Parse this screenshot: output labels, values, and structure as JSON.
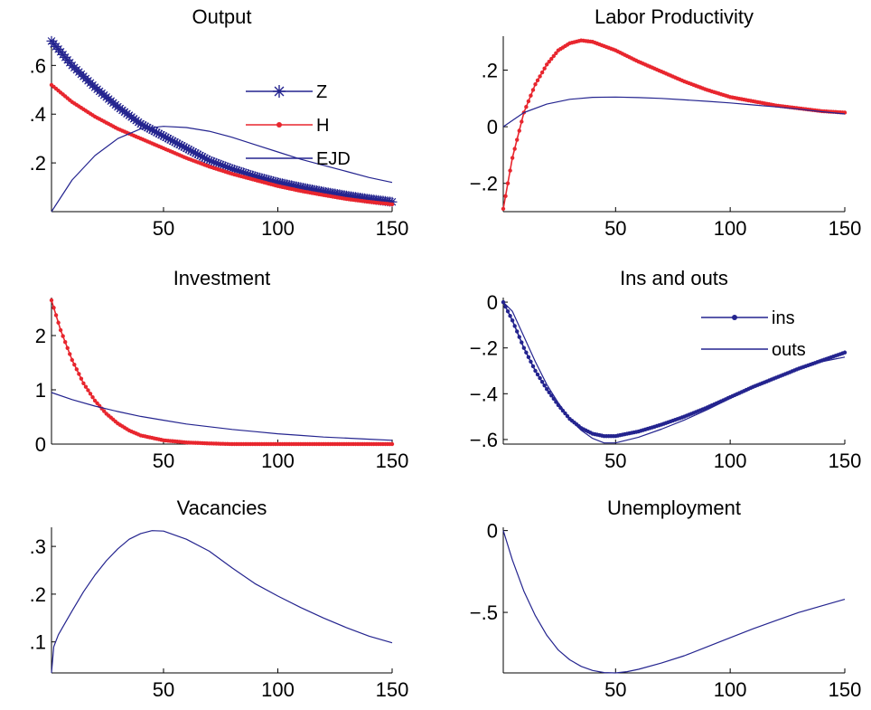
{
  "figure": {
    "layout": "3x2 grid of subplots"
  },
  "colors": {
    "blue": "#24248f",
    "red": "#e8262e"
  },
  "chart_data": [
    {
      "type": "line",
      "title": "Output",
      "xlim": [
        1,
        150
      ],
      "ylim": [
        0,
        0.72
      ],
      "xticks": [
        50,
        100,
        150
      ],
      "yticks": [
        0.2,
        0.4,
        0.6
      ],
      "grid": false,
      "legend": {
        "placement": "top-right",
        "entries": [
          "Z",
          "H",
          "EJD"
        ]
      },
      "series": [
        {
          "name": "Z",
          "marker": "asterisk",
          "color": "#24248f",
          "x": [
            1,
            10,
            20,
            30,
            40,
            50,
            60,
            70,
            80,
            90,
            100,
            110,
            120,
            130,
            140,
            150
          ],
          "y": [
            0.7,
            0.6,
            0.51,
            0.43,
            0.36,
            0.31,
            0.26,
            0.21,
            0.175,
            0.145,
            0.12,
            0.1,
            0.082,
            0.066,
            0.052,
            0.04
          ]
        },
        {
          "name": "H",
          "marker": "dot",
          "color": "#e8262e",
          "x": [
            1,
            10,
            20,
            30,
            40,
            50,
            60,
            70,
            80,
            90,
            100,
            110,
            120,
            130,
            140,
            150
          ],
          "y": [
            0.52,
            0.45,
            0.39,
            0.34,
            0.3,
            0.26,
            0.22,
            0.185,
            0.155,
            0.13,
            0.105,
            0.085,
            0.068,
            0.052,
            0.04,
            0.03
          ]
        },
        {
          "name": "EJD",
          "marker": "none",
          "color": "#24248f",
          "x": [
            1,
            10,
            20,
            30,
            40,
            50,
            60,
            70,
            80,
            90,
            100,
            110,
            120,
            130,
            140,
            150
          ],
          "y": [
            0.0,
            0.13,
            0.23,
            0.3,
            0.34,
            0.35,
            0.345,
            0.33,
            0.305,
            0.275,
            0.245,
            0.215,
            0.19,
            0.165,
            0.14,
            0.12
          ]
        }
      ]
    },
    {
      "type": "line",
      "title": "Labor Productivity",
      "xlim": [
        1,
        150
      ],
      "ylim": [
        -0.3,
        0.32
      ],
      "xticks": [
        50,
        100,
        150
      ],
      "yticks": [
        -0.2,
        0,
        0.2
      ],
      "grid": false,
      "series": [
        {
          "marker": "dot",
          "color": "#e8262e",
          "x": [
            1,
            5,
            10,
            15,
            20,
            25,
            30,
            35,
            40,
            50,
            60,
            70,
            80,
            90,
            100,
            110,
            120,
            130,
            140,
            150
          ],
          "y": [
            -0.29,
            -0.11,
            0.05,
            0.15,
            0.22,
            0.27,
            0.295,
            0.305,
            0.3,
            0.27,
            0.23,
            0.195,
            0.16,
            0.13,
            0.105,
            0.09,
            0.075,
            0.065,
            0.055,
            0.05
          ]
        },
        {
          "marker": "none",
          "color": "#24248f",
          "x": [
            1,
            10,
            20,
            30,
            40,
            50,
            60,
            70,
            80,
            90,
            100,
            110,
            120,
            130,
            140,
            150
          ],
          "y": [
            0.0,
            0.05,
            0.08,
            0.097,
            0.104,
            0.105,
            0.103,
            0.1,
            0.095,
            0.09,
            0.084,
            0.077,
            0.07,
            0.062,
            0.053,
            0.045
          ]
        }
      ]
    },
    {
      "type": "line",
      "title": "Investment",
      "xlim": [
        1,
        150
      ],
      "ylim": [
        0,
        2.7
      ],
      "xticks": [
        50,
        100,
        150
      ],
      "yticks": [
        0,
        1,
        2
      ],
      "grid": false,
      "series": [
        {
          "marker": "dot",
          "color": "#e8262e",
          "x": [
            1,
            5,
            10,
            15,
            20,
            25,
            30,
            35,
            40,
            50,
            60,
            70,
            80,
            90,
            100,
            110,
            120,
            130,
            140,
            150
          ],
          "y": [
            2.65,
            2.1,
            1.55,
            1.12,
            0.8,
            0.56,
            0.38,
            0.25,
            0.16,
            0.07,
            0.03,
            0.012,
            0.0,
            0.0,
            0.0,
            0.0,
            0.0,
            0.0,
            0.0,
            0.0
          ]
        },
        {
          "marker": "none",
          "color": "#24248f",
          "x": [
            1,
            10,
            20,
            30,
            40,
            50,
            60,
            70,
            80,
            90,
            100,
            110,
            120,
            130,
            140,
            150
          ],
          "y": [
            0.95,
            0.82,
            0.7,
            0.6,
            0.51,
            0.44,
            0.37,
            0.32,
            0.27,
            0.23,
            0.19,
            0.16,
            0.13,
            0.11,
            0.09,
            0.07
          ]
        }
      ]
    },
    {
      "type": "line",
      "title": "Ins and outs",
      "xlim": [
        1,
        150
      ],
      "ylim": [
        -0.62,
        0.02
      ],
      "xticks": [
        50,
        100,
        150
      ],
      "yticks": [
        -0.6,
        -0.4,
        -0.2,
        0
      ],
      "grid": false,
      "legend": {
        "placement": "top-right",
        "entries": [
          "ins",
          "outs"
        ]
      },
      "series": [
        {
          "name": "ins",
          "marker": "dot",
          "color": "#24248f",
          "x": [
            1,
            5,
            10,
            15,
            20,
            25,
            30,
            35,
            40,
            45,
            50,
            60,
            70,
            80,
            90,
            100,
            110,
            120,
            130,
            140,
            150
          ],
          "y": [
            0.0,
            -0.08,
            -0.2,
            -0.3,
            -0.38,
            -0.45,
            -0.51,
            -0.55,
            -0.575,
            -0.585,
            -0.585,
            -0.565,
            -0.535,
            -0.5,
            -0.46,
            -0.415,
            -0.37,
            -0.33,
            -0.29,
            -0.255,
            -0.22
          ]
        },
        {
          "name": "outs",
          "marker": "none",
          "color": "#24248f",
          "x": [
            1,
            5,
            10,
            15,
            20,
            25,
            30,
            35,
            40,
            45,
            50,
            60,
            70,
            80,
            90,
            100,
            110,
            120,
            130,
            140,
            150
          ],
          "y": [
            0.0,
            -0.04,
            -0.15,
            -0.26,
            -0.36,
            -0.44,
            -0.51,
            -0.56,
            -0.595,
            -0.615,
            -0.615,
            -0.59,
            -0.555,
            -0.515,
            -0.47,
            -0.42,
            -0.375,
            -0.33,
            -0.29,
            -0.26,
            -0.24
          ]
        }
      ]
    },
    {
      "type": "line",
      "title": "Vacancies",
      "xlim": [
        1,
        150
      ],
      "ylim": [
        0.035,
        0.34
      ],
      "xticks": [
        50,
        100,
        150
      ],
      "yticks": [
        0.1,
        0.2,
        0.3
      ],
      "grid": false,
      "series": [
        {
          "marker": "none",
          "color": "#24248f",
          "x": [
            1,
            2,
            4,
            7,
            10,
            15,
            20,
            25,
            30,
            35,
            40,
            45,
            50,
            60,
            70,
            80,
            90,
            100,
            110,
            120,
            130,
            140,
            150
          ],
          "y": [
            0.035,
            0.09,
            0.115,
            0.14,
            0.165,
            0.205,
            0.24,
            0.27,
            0.295,
            0.315,
            0.327,
            0.333,
            0.332,
            0.315,
            0.29,
            0.255,
            0.222,
            0.196,
            0.172,
            0.15,
            0.13,
            0.112,
            0.098
          ]
        }
      ]
    },
    {
      "type": "line",
      "title": "Unemployment",
      "xlim": [
        1,
        150
      ],
      "ylim": [
        -0.87,
        0.02
      ],
      "xticks": [
        50,
        100,
        150
      ],
      "yticks": [
        -0.5,
        0
      ],
      "grid": false,
      "series": [
        {
          "marker": "none",
          "color": "#24248f",
          "x": [
            1,
            5,
            10,
            15,
            20,
            25,
            30,
            35,
            40,
            45,
            50,
            55,
            60,
            70,
            80,
            90,
            100,
            110,
            120,
            130,
            140,
            150
          ],
          "y": [
            0.0,
            -0.18,
            -0.37,
            -0.52,
            -0.64,
            -0.73,
            -0.79,
            -0.83,
            -0.855,
            -0.868,
            -0.87,
            -0.862,
            -0.848,
            -0.81,
            -0.765,
            -0.71,
            -0.655,
            -0.6,
            -0.55,
            -0.5,
            -0.46,
            -0.42
          ]
        }
      ]
    }
  ]
}
